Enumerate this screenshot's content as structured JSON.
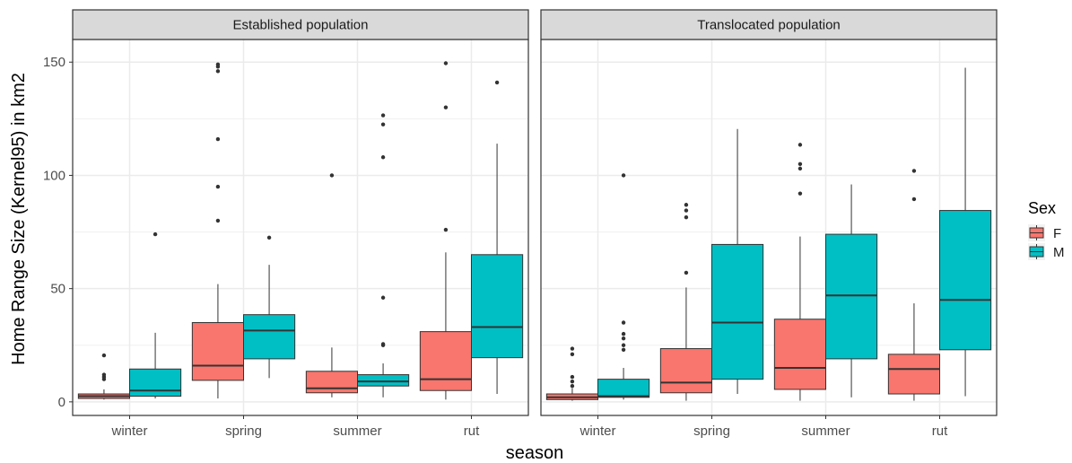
{
  "chart_data": {
    "type": "boxplot",
    "xlabel": "season",
    "ylabel": "Home Range Size (Kernel95) in km2",
    "categories": [
      "winter",
      "spring",
      "summer",
      "rut"
    ],
    "ylim": [
      -6,
      160
    ],
    "yticks": [
      0,
      50,
      100,
      150
    ],
    "grid": true,
    "legend": {
      "title": "Sex",
      "position": "right",
      "entries": [
        {
          "name": "F",
          "color": "#F8766D"
        },
        {
          "name": "M",
          "color": "#00BFC4"
        }
      ]
    },
    "panels": [
      {
        "title": "Established population",
        "boxes": [
          {
            "category": "winter",
            "group": "F",
            "min": 1,
            "q1": 1.5,
            "median": 2.5,
            "q3": 3.5,
            "max": 5.5,
            "outliers": [
              10,
              11,
              12,
              20.5
            ]
          },
          {
            "category": "winter",
            "group": "M",
            "min": 1.5,
            "q1": 2.5,
            "median": 5,
            "q3": 14.5,
            "max": 30.5,
            "outliers": [
              74
            ]
          },
          {
            "category": "spring",
            "group": "F",
            "min": 1.5,
            "q1": 9.5,
            "median": 16,
            "q3": 35,
            "max": 52,
            "outliers": [
              80,
              95,
              116,
              146,
              148,
              149
            ]
          },
          {
            "category": "spring",
            "group": "M",
            "min": 10.5,
            "q1": 19,
            "median": 31.5,
            "q3": 38.5,
            "max": 60.5,
            "outliers": [
              72.5
            ]
          },
          {
            "category": "summer",
            "group": "F",
            "min": 2,
            "q1": 4,
            "median": 6,
            "q3": 13.5,
            "max": 24,
            "outliers": [
              100
            ]
          },
          {
            "category": "summer",
            "group": "M",
            "min": 2,
            "q1": 7,
            "median": 9,
            "q3": 12,
            "max": 17,
            "outliers": [
              25,
              25.5,
              46,
              108,
              122.5,
              126.5
            ]
          },
          {
            "category": "rut",
            "group": "F",
            "min": 1,
            "q1": 5,
            "median": 10,
            "q3": 31,
            "max": 66,
            "outliers": [
              76,
              130,
              149.5
            ]
          },
          {
            "category": "rut",
            "group": "M",
            "min": 3.5,
            "q1": 19.5,
            "median": 33,
            "q3": 65,
            "max": 114,
            "outliers": [
              141
            ]
          }
        ]
      },
      {
        "title": "Translocated population",
        "boxes": [
          {
            "category": "winter",
            "group": "F",
            "min": 0.5,
            "q1": 1,
            "median": 2,
            "q3": 3.5,
            "max": 6,
            "outliers": [
              7,
              9,
              11,
              21,
              23.5
            ]
          },
          {
            "category": "winter",
            "group": "M",
            "min": 1,
            "q1": 2,
            "median": 2.5,
            "q3": 10,
            "max": 15,
            "outliers": [
              23,
              25,
              28,
              30,
              35,
              100
            ]
          },
          {
            "category": "spring",
            "group": "F",
            "min": 0.5,
            "q1": 4,
            "median": 8.5,
            "q3": 23.5,
            "max": 50.5,
            "outliers": [
              57,
              81.5,
              84.5,
              87
            ]
          },
          {
            "category": "spring",
            "group": "M",
            "min": 3.5,
            "q1": 10,
            "median": 35,
            "q3": 69.5,
            "max": 120.5,
            "outliers": []
          },
          {
            "category": "summer",
            "group": "F",
            "min": 0.5,
            "q1": 5.5,
            "median": 15,
            "q3": 36.5,
            "max": 73,
            "outliers": [
              92,
              103,
              105,
              113.5
            ]
          },
          {
            "category": "summer",
            "group": "M",
            "min": 2,
            "q1": 19,
            "median": 47,
            "q3": 74,
            "max": 96,
            "outliers": []
          },
          {
            "category": "rut",
            "group": "F",
            "min": 0.5,
            "q1": 3.5,
            "median": 14.5,
            "q3": 21,
            "max": 43.5,
            "outliers": [
              89.5,
              102
            ]
          },
          {
            "category": "rut",
            "group": "M",
            "min": 2.5,
            "q1": 23,
            "median": 45,
            "q3": 84.5,
            "max": 147.5,
            "outliers": []
          }
        ]
      }
    ]
  }
}
